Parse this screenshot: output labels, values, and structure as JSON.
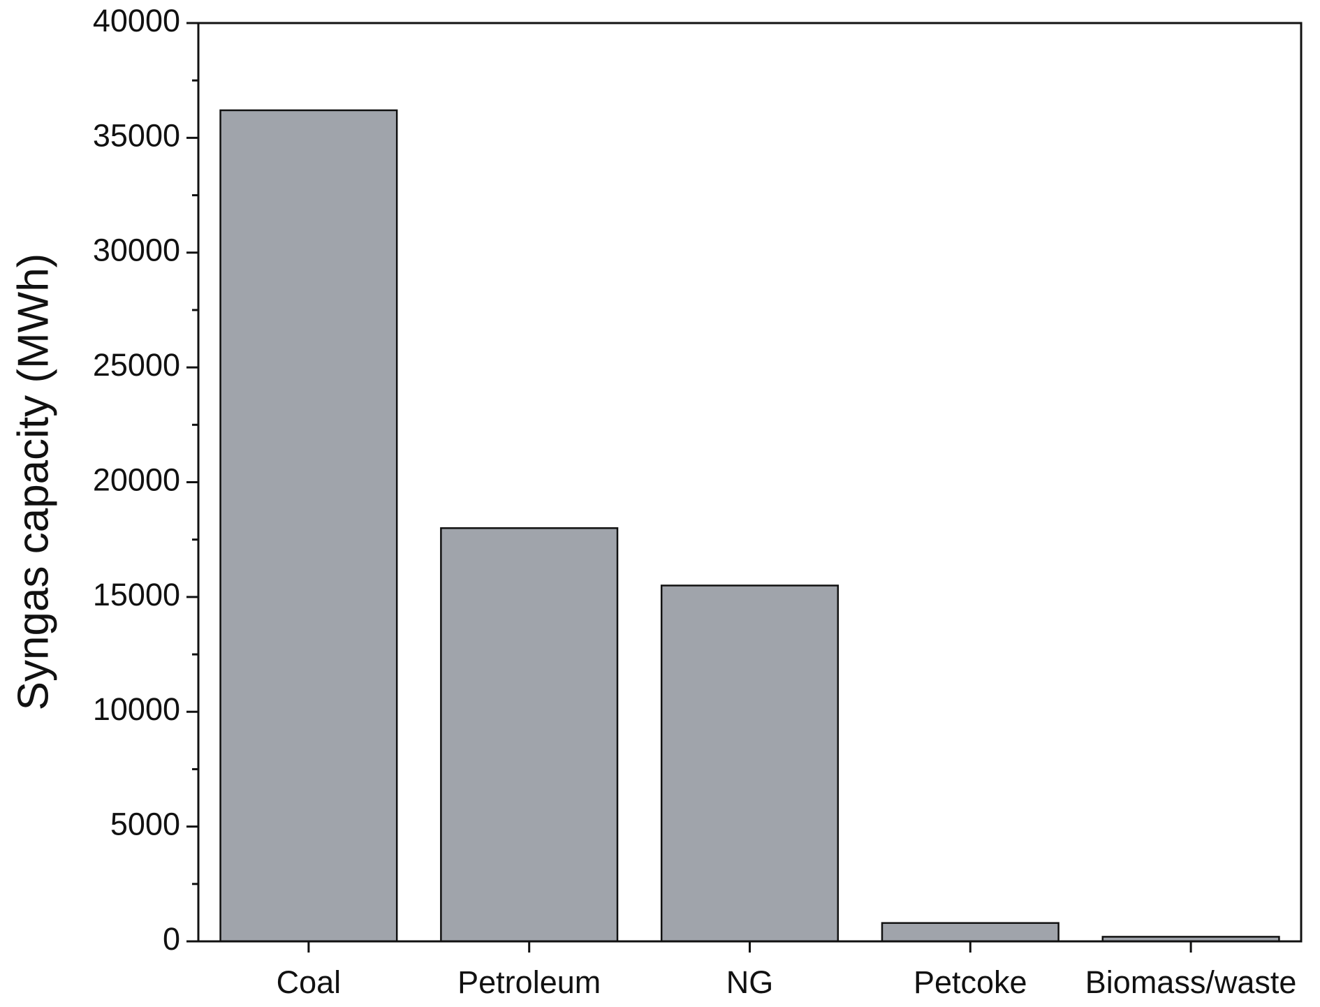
{
  "chart_data": {
    "type": "bar",
    "ylabel": "Syngas capacity (MWh)",
    "categories": [
      "Coal",
      "Petroleum",
      "NG",
      "Petcoke",
      "Biomass/waste"
    ],
    "values": [
      36200,
      18000,
      15500,
      800,
      200
    ],
    "color": "#a0a4ab",
    "ylim": [
      0,
      40000
    ],
    "yticks": [
      0,
      5000,
      10000,
      15000,
      20000,
      25000,
      30000,
      35000,
      40000
    ],
    "yminorticks": [
      2500,
      7500,
      12500,
      17500,
      22500,
      27500,
      32500,
      37500
    ],
    "grid": false
  }
}
